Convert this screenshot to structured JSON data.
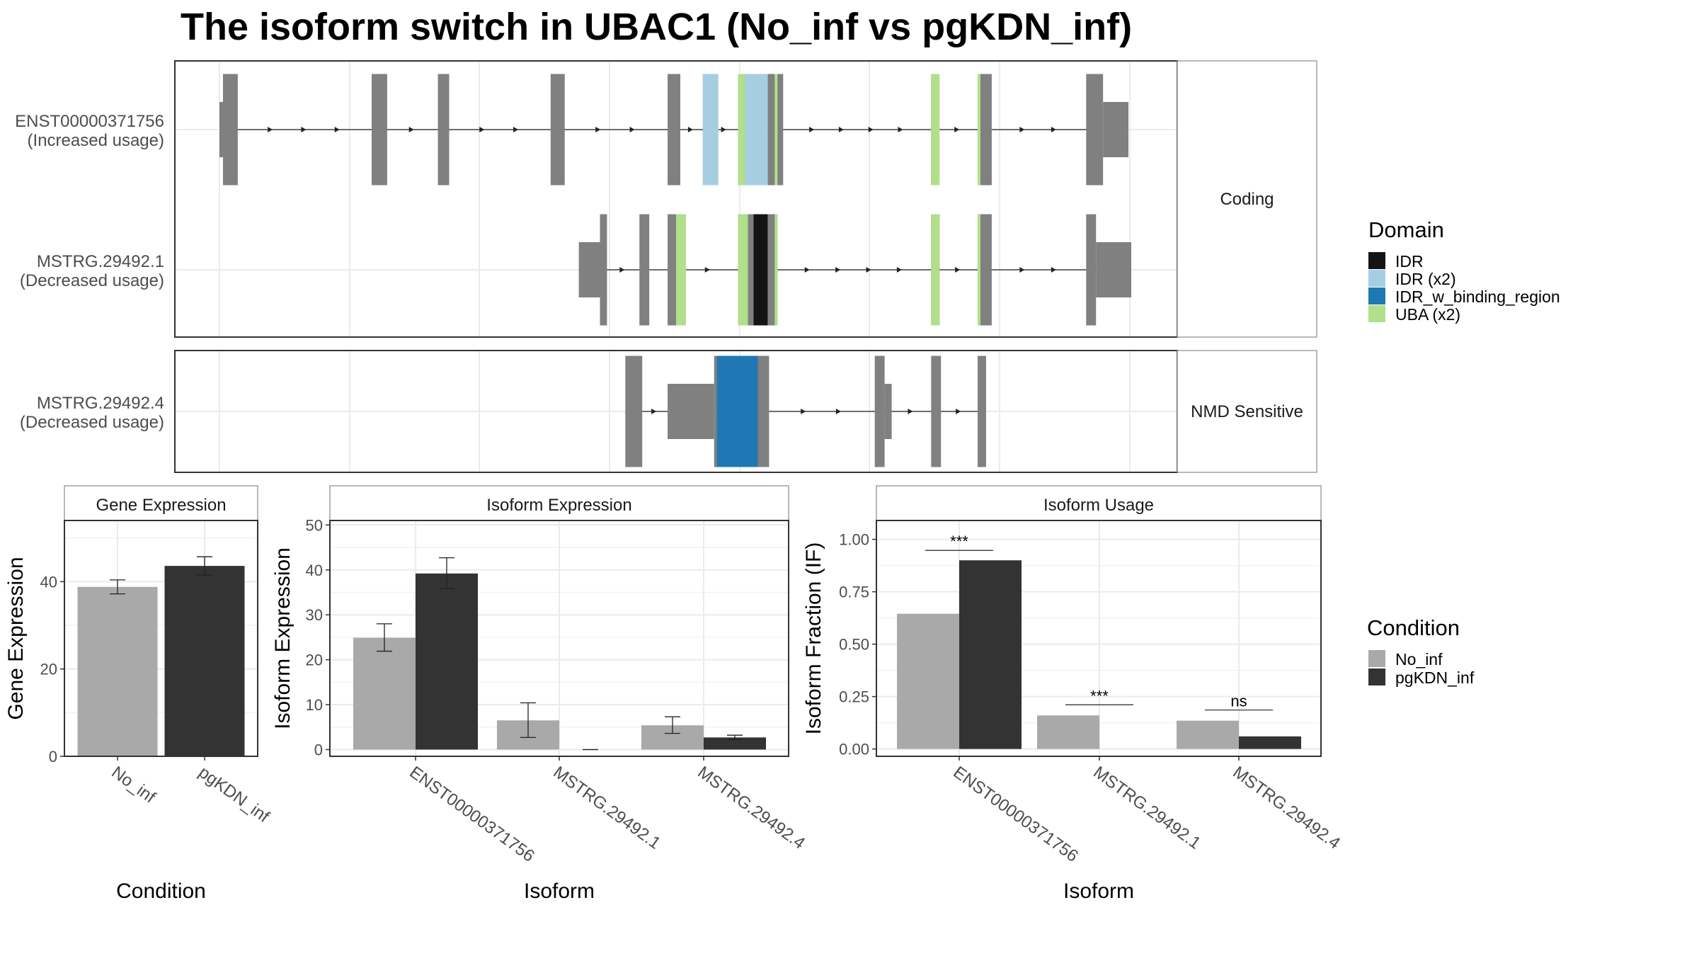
{
  "title": "The isoform switch in UBAC1 (No_inf vs pgKDN_inf)",
  "colors": {
    "exon": "#808080",
    "intron": "#222222",
    "panel_border": "#333333",
    "strip_border": "#8a8a8a",
    "grid": "#ebebeb",
    "no_inf": "#a9a9a9",
    "pgkdn_inf": "#333333",
    "errorbar": "#222222"
  },
  "structure": {
    "facets": [
      {
        "label": "Coding",
        "isoforms": [
          {
            "id": "ENST00000371756",
            "usage": "(Increased usage)"
          },
          {
            "id": "MSTRG.29492.1",
            "usage": "(Decreased usage)"
          }
        ]
      },
      {
        "label": "NMD Sensitive",
        "isoforms": [
          {
            "id": "MSTRG.29492.4",
            "usage": "(Decreased usage)"
          }
        ]
      }
    ],
    "isoforms": [
      {
        "id": "ENST00000371756",
        "exons": [
          [
            0,
            0.25,
            "s"
          ],
          [
            0.25,
            1.3,
            "c"
          ],
          [
            10.8,
            11.9,
            "c"
          ],
          [
            15.5,
            16.3,
            "c"
          ],
          [
            23.5,
            24.5,
            "c"
          ],
          [
            31.8,
            32.7,
            "c"
          ],
          [
            34.3,
            34.9,
            "c"
          ],
          [
            36.8,
            37.8,
            "c"
          ],
          [
            38.9,
            40.0,
            "c"
          ],
          [
            50.5,
            51.0,
            "c"
          ],
          [
            53.8,
            54.8,
            "c"
          ],
          [
            61.5,
            62.7,
            "c"
          ],
          [
            62.7,
            64.5,
            "s"
          ]
        ],
        "domains": [
          {
            "name": "IDR (x2)",
            "start": 34.3,
            "end": 35.4
          },
          {
            "name": "IDR (x2)",
            "start": 37.3,
            "end": 38.9
          },
          {
            "name": "UBA (x2)",
            "start": 36.8,
            "end": 37.3
          },
          {
            "name": "UBA (x2)",
            "start": 39.4,
            "end": 39.6
          },
          {
            "name": "UBA (x2)",
            "start": 50.5,
            "end": 51.1
          },
          {
            "name": "UBA (x2)",
            "start": 53.8,
            "end": 54.0
          }
        ]
      },
      {
        "id": "MSTRG.29492.1",
        "exons": [
          [
            25.5,
            27.0,
            "s"
          ],
          [
            27.0,
            27.5,
            "c"
          ],
          [
            29.8,
            30.5,
            "c"
          ],
          [
            31.8,
            32.6,
            "c"
          ],
          [
            36.8,
            39.6,
            "c"
          ],
          [
            50.5,
            51.1,
            "c"
          ],
          [
            53.8,
            54.8,
            "c"
          ],
          [
            61.5,
            62.2,
            "c"
          ],
          [
            62.2,
            64.7,
            "s"
          ]
        ],
        "domains": [
          {
            "name": "UBA (x2)",
            "start": 32.4,
            "end": 33.1
          },
          {
            "name": "UBA (x2)",
            "start": 36.8,
            "end": 37.5
          },
          {
            "name": "IDR",
            "start": 37.9,
            "end": 38.9
          },
          {
            "name": "UBA (x2)",
            "start": 39.4,
            "end": 39.6
          },
          {
            "name": "UBA (x2)",
            "start": 50.5,
            "end": 51.1
          },
          {
            "name": "UBA (x2)",
            "start": 53.8,
            "end": 54.0
          }
        ]
      },
      {
        "id": "MSTRG.29492.4",
        "exons": [
          [
            28.8,
            30.0,
            "c"
          ],
          [
            31.8,
            35.1,
            "s"
          ],
          [
            35.1,
            39.0,
            "c"
          ],
          [
            46.5,
            47.2,
            "c"
          ],
          [
            47.2,
            47.7,
            "s"
          ],
          [
            50.5,
            51.2,
            "c"
          ],
          [
            53.8,
            54.4,
            "c"
          ]
        ],
        "domains": [
          {
            "name": "IDR_w_binding_region",
            "start": 35.3,
            "end": 38.2
          }
        ]
      }
    ]
  },
  "legend_domain": {
    "title": "Domain",
    "items": [
      {
        "label": "IDR",
        "color": "#141414"
      },
      {
        "label": "IDR (x2)",
        "color": "#a6cee3"
      },
      {
        "label": "IDR_w_binding_region",
        "color": "#1f78b4"
      },
      {
        "label": "UBA (x2)",
        "color": "#b2df8a"
      }
    ]
  },
  "legend_condition": {
    "title": "Condition",
    "items": [
      {
        "label": "No_inf",
        "color": "#a9a9a9"
      },
      {
        "label": "pgKDN_inf",
        "color": "#333333"
      }
    ]
  },
  "chart_data": [
    {
      "type": "bar",
      "title": "Gene Expression",
      "xlabel": "Condition",
      "ylabel": "Gene Expression",
      "categories": [
        "No_inf",
        "pgKDN_inf"
      ],
      "series": [
        {
          "name": "",
          "values": [
            38.8,
            43.6
          ],
          "err_low": [
            37.2,
            41.5
          ],
          "err_high": [
            40.4,
            45.7
          ]
        }
      ],
      "ylim": [
        0,
        54
      ],
      "yticks": [
        0,
        20,
        40
      ]
    },
    {
      "type": "bar",
      "title": "Isoform Expression",
      "xlabel": "Isoform",
      "ylabel": "Isoform Expression",
      "categories": [
        "ENST00000371756",
        "MSTRG.29492.1",
        "MSTRG.29492.4"
      ],
      "series": [
        {
          "name": "No_inf",
          "values": [
            24.9,
            6.5,
            5.4
          ],
          "err_low": [
            21.9,
            2.7,
            3.6
          ],
          "err_high": [
            28.0,
            10.4,
            7.3
          ]
        },
        {
          "name": "pgKDN_inf",
          "values": [
            39.2,
            0.0,
            2.7
          ],
          "err_low": [
            35.8,
            0.0,
            2.2
          ],
          "err_high": [
            42.7,
            0.0,
            3.2
          ]
        }
      ],
      "ylim": [
        -1.5,
        51
      ],
      "yticks": [
        0,
        10,
        20,
        30,
        40,
        50
      ]
    },
    {
      "type": "bar",
      "title": "Isoform Usage",
      "xlabel": "Isoform",
      "ylabel": "Isoform Fraction (IF)",
      "categories": [
        "ENST00000371756",
        "MSTRG.29492.1",
        "MSTRG.29492.4"
      ],
      "series": [
        {
          "name": "No_inf",
          "values": [
            0.645,
            0.16,
            0.135
          ]
        },
        {
          "name": "pgKDN_inf",
          "values": [
            0.9,
            0.0,
            0.06
          ]
        }
      ],
      "significance": [
        "***",
        "***",
        "ns"
      ],
      "ylim": [
        -0.035,
        1.09
      ],
      "yticks": [
        "0.00",
        "0.25",
        "0.50",
        "0.75",
        "1.00"
      ]
    }
  ]
}
